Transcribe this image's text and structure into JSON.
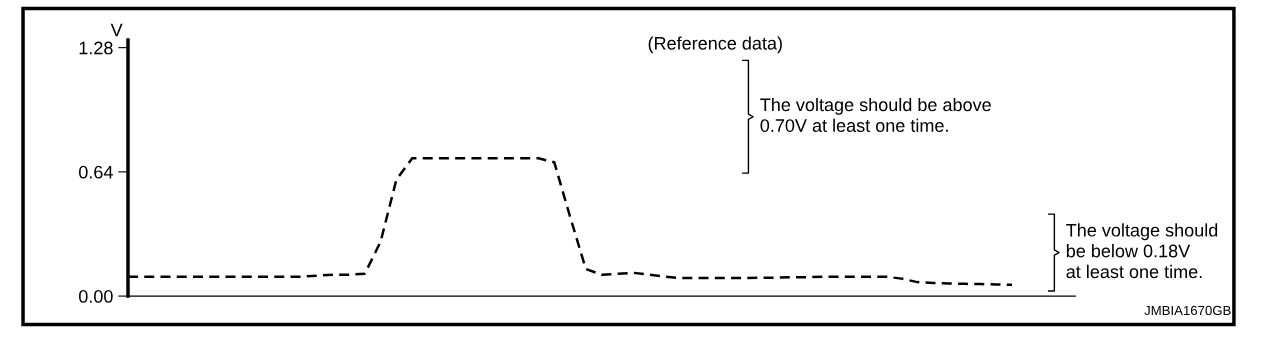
{
  "chart_data": {
    "type": "line",
    "title": "(Reference data)",
    "ylabel": "V",
    "categories": [
      null,
      null,
      null,
      null,
      null,
      null,
      null,
      null,
      null,
      null,
      null,
      null,
      null,
      null,
      null,
      null,
      null,
      null,
      null,
      null,
      null,
      null,
      null,
      null,
      null,
      null,
      null,
      null,
      null,
      null,
      null,
      null,
      null,
      null,
      null,
      null,
      null,
      null,
      null,
      null,
      null,
      null,
      null,
      null,
      null,
      null,
      null,
      null,
      null,
      null,
      null,
      null,
      null,
      null,
      null,
      null,
      null,
      null,
      null,
      null,
      null
    ],
    "series": [
      {
        "color": "#000000",
        "values": [
          0.1,
          0.1,
          0.1,
          0.1,
          0.1,
          0.1,
          0.1,
          0.1,
          0.1,
          0.1,
          0.1,
          0.1,
          0.105,
          0.11,
          0.11,
          0.115,
          0.28,
          0.6,
          0.71,
          0.71,
          0.71,
          0.71,
          0.71,
          0.71,
          0.71,
          0.71,
          0.71,
          0.69,
          0.41,
          0.14,
          0.11,
          0.115,
          0.12,
          0.11,
          0.1,
          0.093,
          0.093,
          0.093,
          0.093,
          0.093,
          0.095,
          0.095,
          0.097,
          0.097,
          0.1,
          0.1,
          0.1,
          0.1,
          0.1,
          0.09,
          0.072,
          0.068,
          0.065,
          0.063,
          0.062,
          0.06,
          0.058,
          null,
          null,
          null,
          null
        ]
      }
    ],
    "ylim": [
      0,
      1.32
    ],
    "yticks": [
      {
        "value": 0,
        "label": "0.00"
      },
      {
        "value": 0.64,
        "label": "0.64"
      },
      {
        "value": 1.28,
        "label": "1.28"
      }
    ],
    "tick_labels": "y",
    "grid": false,
    "legend": false,
    "marker": "none",
    "line_style": "dashed",
    "annotations": [
      "The voltage should be above\n0.70V at least one time.",
      "The voltage should\nbe below 0.18V\nat least one time.",
      "JMBIA1670GB"
    ]
  }
}
